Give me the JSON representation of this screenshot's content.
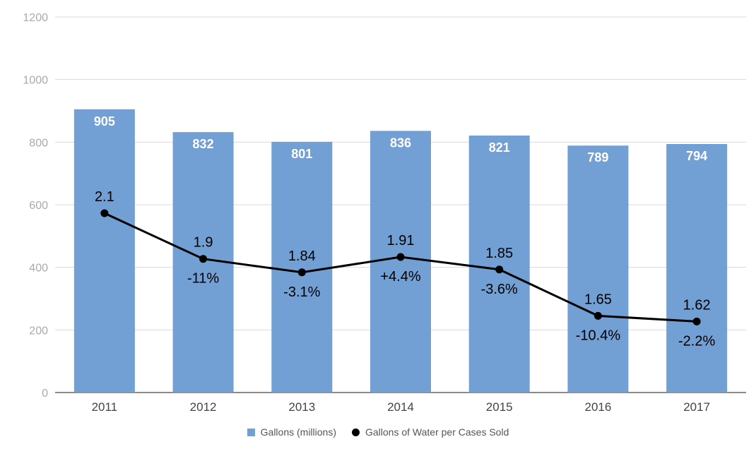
{
  "chart_data": {
    "type": "bar",
    "categories": [
      "2011",
      "2012",
      "2013",
      "2014",
      "2015",
      "2016",
      "2017"
    ],
    "ylim": [
      0,
      1200
    ],
    "yticks": [
      0,
      200,
      400,
      600,
      800,
      1000,
      1200
    ],
    "grid": true,
    "legend_position": "bottom",
    "series": [
      {
        "name": "Gallons (millions)",
        "type": "bar",
        "color": "#729fd4",
        "values": [
          905,
          832,
          801,
          836,
          821,
          789,
          794
        ],
        "labels": [
          "905",
          "832",
          "801",
          "836",
          "821",
          "789",
          "794"
        ]
      },
      {
        "name": "Gallons of Water per Cases Sold",
        "type": "line",
        "color": "#000000",
        "plot_values": [
          573,
          427,
          384,
          433,
          393,
          245,
          227
        ],
        "values": [
          2.1,
          1.9,
          1.84,
          1.91,
          1.85,
          1.65,
          1.62
        ],
        "value_labels": [
          "2.1",
          "1.9",
          "1.84",
          "1.91",
          "1.85",
          "1.65",
          "1.62"
        ],
        "change_labels": [
          "",
          "-11%",
          "-3.1%",
          "+4.4%",
          "-3.6%",
          "-10.4%",
          "-2.2%"
        ]
      }
    ]
  }
}
